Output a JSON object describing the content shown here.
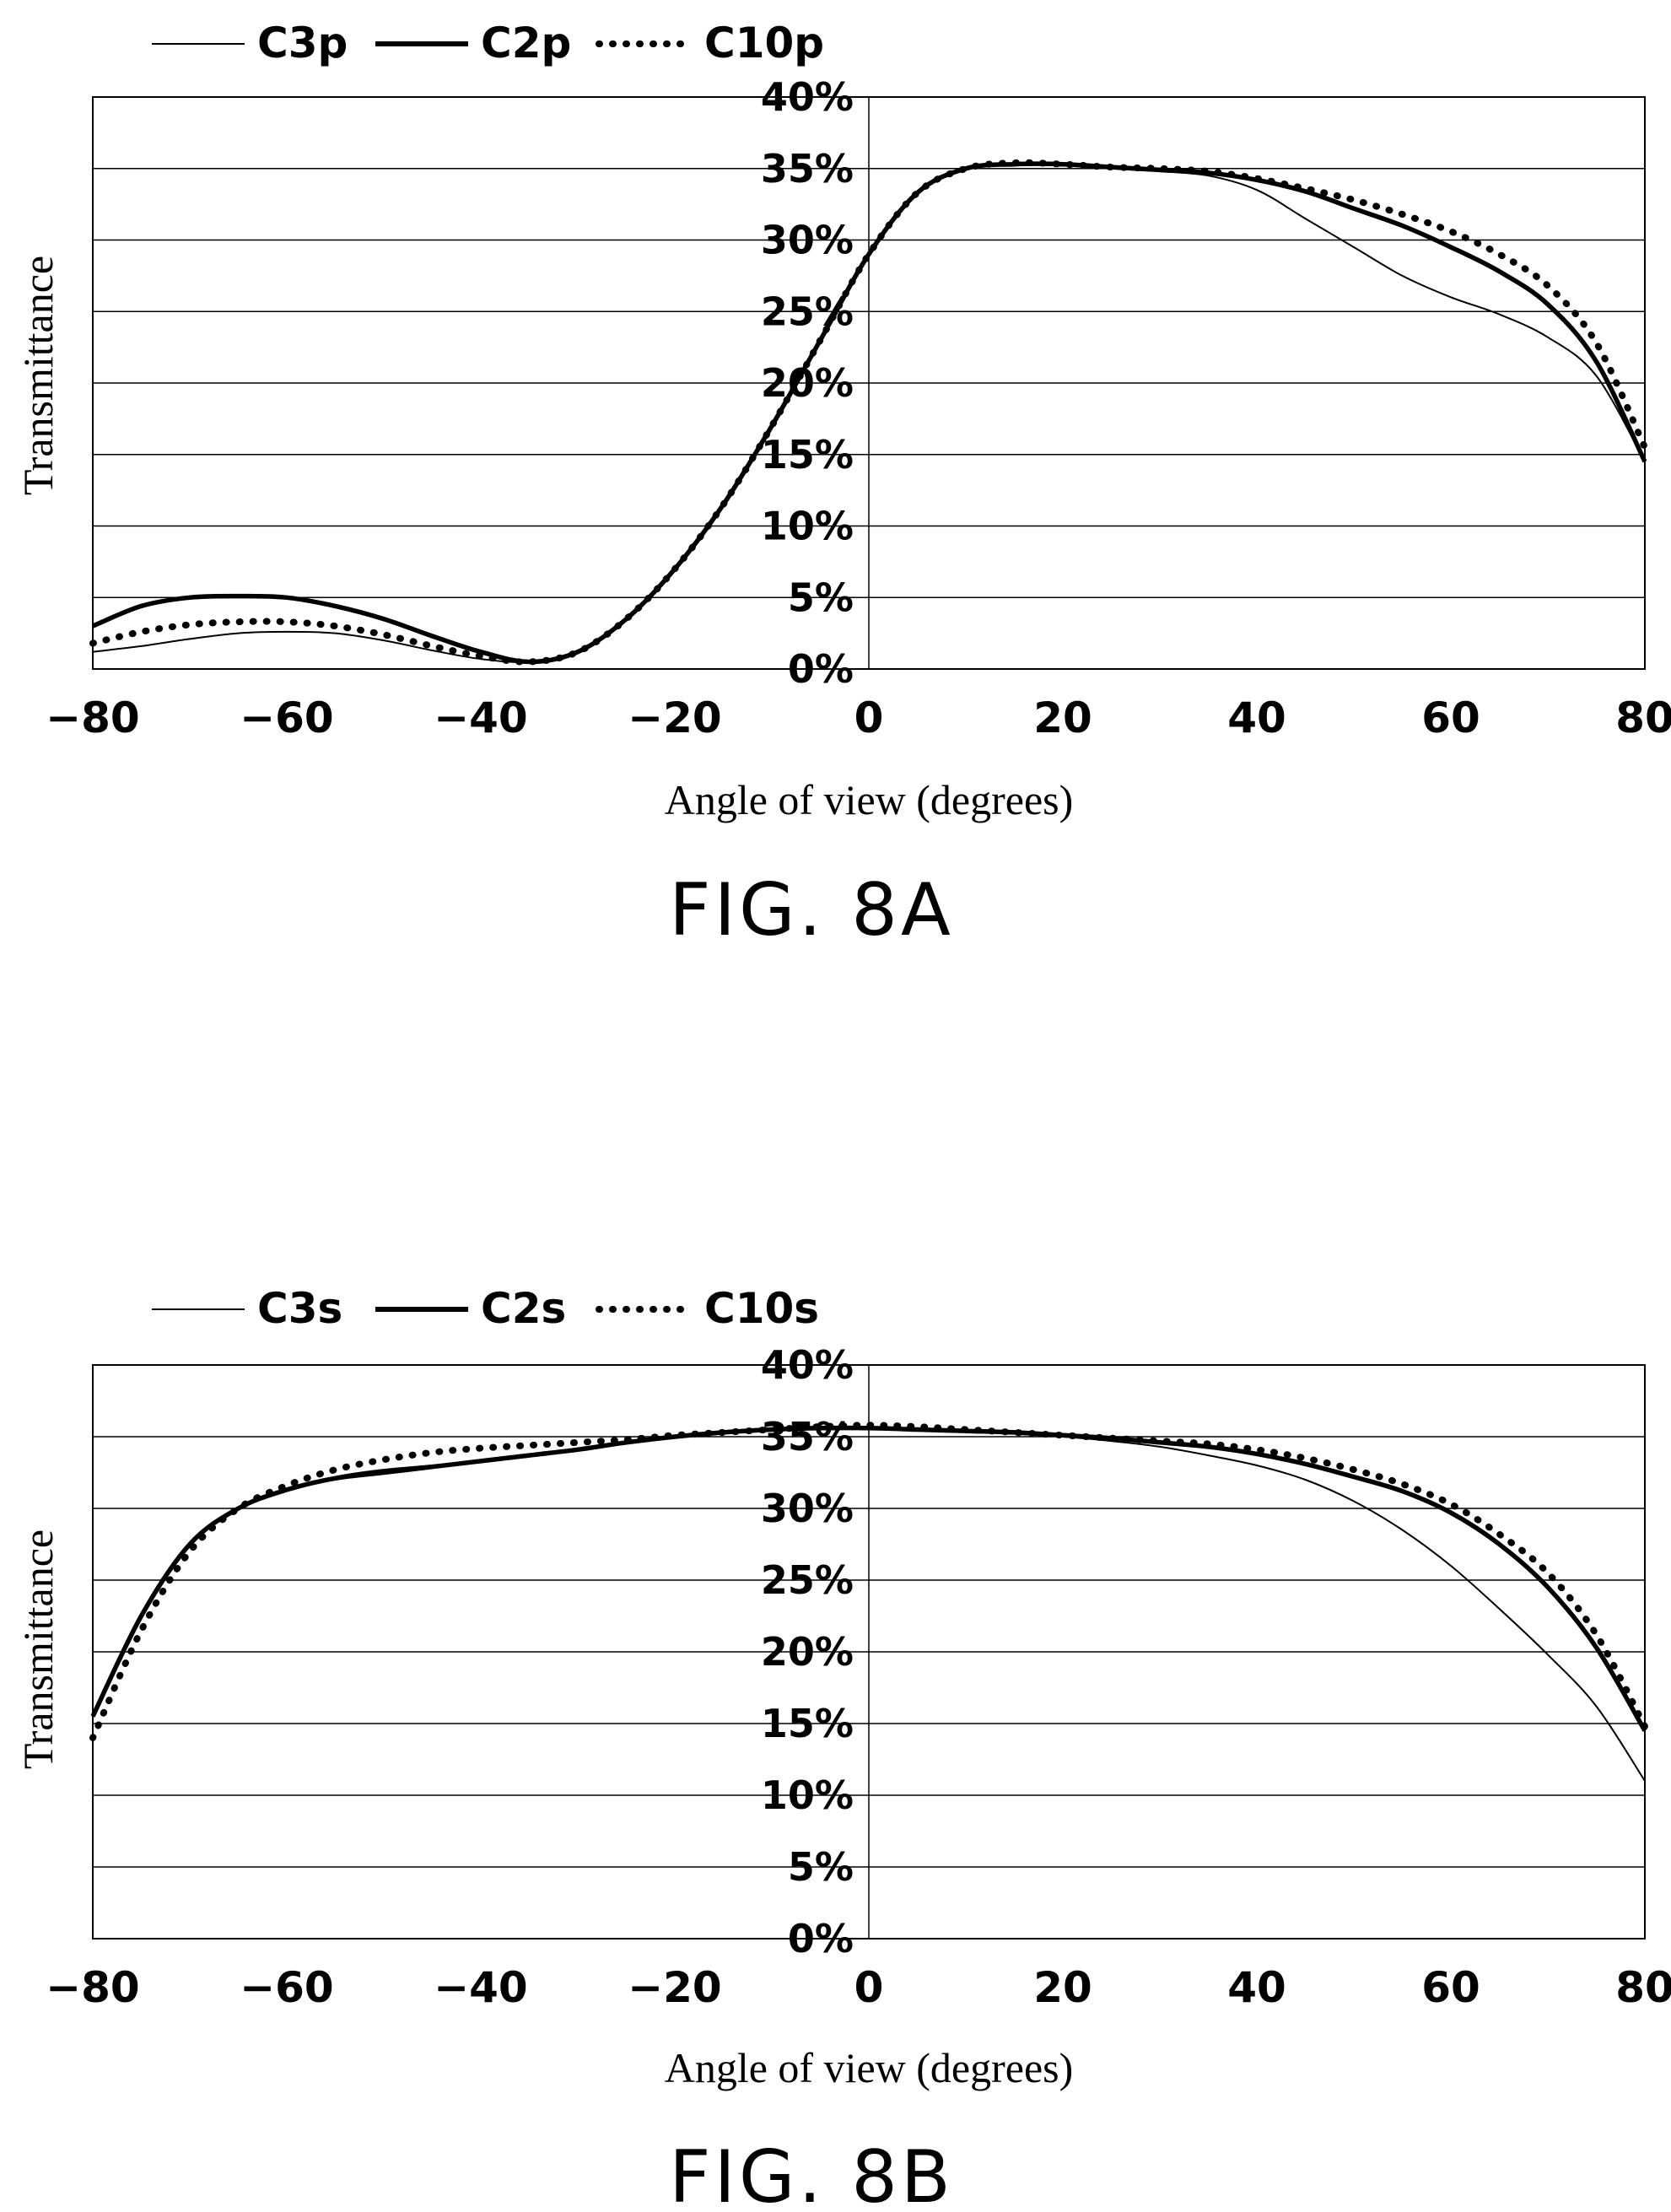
{
  "chart_data": [
    {
      "type": "line",
      "title": "FIG. 8A",
      "xlabel": "Angle of view (degrees)",
      "ylabel": "Transmittance",
      "xlim": [
        -80,
        80
      ],
      "ylim": [
        0,
        40
      ],
      "x_ticks": [
        "−80",
        "−60",
        "−40",
        "−20",
        "0",
        "20",
        "40",
        "60",
        "80"
      ],
      "y_ticks": [
        "0%",
        "5%",
        "10%",
        "15%",
        "20%",
        "25%",
        "30%",
        "35%",
        "40%"
      ],
      "grid": "horizontal",
      "legend": "top-left",
      "x": [
        -80,
        -75,
        -70,
        -65,
        -60,
        -55,
        -50,
        -45,
        -40,
        -35,
        -30,
        -25,
        -20,
        -15,
        -10,
        -5,
        0,
        5,
        10,
        15,
        20,
        25,
        30,
        35,
        40,
        45,
        50,
        55,
        60,
        65,
        70,
        75,
        80
      ],
      "series": [
        {
          "name": "C3p",
          "style": "thin",
          "values": [
            1.2,
            1.6,
            2.1,
            2.5,
            2.6,
            2.5,
            2.0,
            1.3,
            0.7,
            0.5,
            1.2,
            3.5,
            7.0,
            11.5,
            17.0,
            23.0,
            29.0,
            33.3,
            35.0,
            35.3,
            35.2,
            35.0,
            34.8,
            34.5,
            33.5,
            31.5,
            29.5,
            27.5,
            26.0,
            24.8,
            23.2,
            20.5,
            14.5
          ]
        },
        {
          "name": "C2p",
          "style": "thick",
          "values": [
            3.0,
            4.4,
            5.0,
            5.1,
            5.0,
            4.4,
            3.5,
            2.3,
            1.2,
            0.5,
            1.2,
            3.5,
            7.0,
            11.5,
            17.0,
            23.0,
            29.0,
            33.3,
            35.0,
            35.3,
            35.3,
            35.1,
            34.9,
            34.7,
            34.2,
            33.4,
            32.2,
            31.0,
            29.5,
            27.8,
            25.5,
            21.5,
            14.5
          ]
        },
        {
          "name": "C10p",
          "style": "dotted",
          "values": [
            1.8,
            2.6,
            3.1,
            3.3,
            3.3,
            3.0,
            2.4,
            1.6,
            0.9,
            0.5,
            1.2,
            3.5,
            7.0,
            11.5,
            17.0,
            23.0,
            29.0,
            33.3,
            35.0,
            35.4,
            35.3,
            35.1,
            35.0,
            34.8,
            34.3,
            33.6,
            32.8,
            31.8,
            30.6,
            29.0,
            26.8,
            22.8,
            15.5
          ]
        }
      ]
    },
    {
      "type": "line",
      "title": "FIG. 8B",
      "xlabel": "Angle of view (degrees)",
      "ylabel": "Transmittance",
      "xlim": [
        -80,
        80
      ],
      "ylim": [
        0,
        40
      ],
      "x_ticks": [
        "−80",
        "−60",
        "−40",
        "−20",
        "0",
        "20",
        "40",
        "60",
        "80"
      ],
      "y_ticks": [
        "0%",
        "5%",
        "10%",
        "15%",
        "20%",
        "25%",
        "30%",
        "35%",
        "40%"
      ],
      "grid": "horizontal",
      "legend": "top-left",
      "x": [
        -80,
        -75,
        -70,
        -65,
        -60,
        -55,
        -50,
        -45,
        -40,
        -35,
        -30,
        -25,
        -20,
        -15,
        -10,
        -5,
        0,
        5,
        10,
        15,
        20,
        25,
        30,
        35,
        40,
        45,
        50,
        55,
        60,
        65,
        70,
        75,
        80
      ],
      "series": [
        {
          "name": "C3s",
          "style": "thin",
          "values": [
            15.5,
            22.5,
            27.5,
            30.0,
            31.3,
            32.2,
            32.7,
            33.0,
            33.3,
            33.7,
            34.1,
            34.6,
            35.0,
            35.3,
            35.5,
            35.6,
            35.6,
            35.5,
            35.4,
            35.2,
            35.0,
            34.7,
            34.3,
            33.7,
            33.0,
            32.0,
            30.5,
            28.5,
            26.0,
            23.0,
            19.8,
            16.2,
            11.0
          ]
        },
        {
          "name": "C2s",
          "style": "thick",
          "values": [
            15.5,
            22.5,
            27.5,
            30.0,
            31.3,
            32.1,
            32.5,
            32.9,
            33.3,
            33.7,
            34.1,
            34.6,
            35.0,
            35.3,
            35.5,
            35.6,
            35.6,
            35.5,
            35.4,
            35.3,
            35.1,
            34.9,
            34.6,
            34.3,
            33.8,
            33.1,
            32.2,
            31.2,
            29.7,
            27.5,
            24.5,
            20.3,
            14.5
          ]
        },
        {
          "name": "C10s",
          "style": "dotted",
          "values": [
            14.0,
            21.5,
            27.0,
            30.0,
            31.6,
            32.7,
            33.4,
            33.9,
            34.2,
            34.4,
            34.6,
            34.8,
            35.1,
            35.3,
            35.5,
            35.7,
            35.8,
            35.7,
            35.5,
            35.3,
            35.1,
            34.9,
            34.7,
            34.5,
            34.1,
            33.5,
            32.7,
            31.7,
            30.3,
            28.2,
            25.5,
            21.2,
            14.8
          ]
        }
      ]
    }
  ]
}
